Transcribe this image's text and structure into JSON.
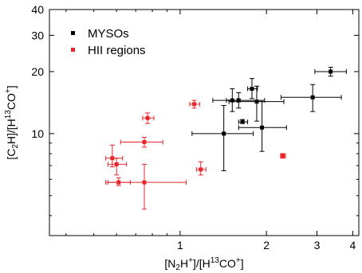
{
  "chart_data": {
    "type": "scatter",
    "title": "",
    "xlabel": {
      "p1": "[N",
      "s1": "2",
      "p2": "H",
      "sup1": "+",
      "p3": "]/[H",
      "sup2": "13",
      "p4": "CO",
      "sup3": "+",
      "p5": "]"
    },
    "ylabel": {
      "p1": "[C",
      "s1": "2",
      "p2": "H]/[H",
      "sup1": "13",
      "p3": "CO",
      "sup2": "+",
      "p4": "]"
    },
    "x_scale": "log",
    "y_scale": "log",
    "xlim": [
      0.35,
      4.2
    ],
    "ylim": [
      3.2,
      40
    ],
    "x_ticks": [
      {
        "value": 1,
        "label": "1"
      },
      {
        "value": 2,
        "label": "2"
      },
      {
        "value": 3,
        "label": "3"
      },
      {
        "value": 4,
        "label": "4"
      }
    ],
    "y_ticks": [
      {
        "value": 10,
        "label": "10"
      },
      {
        "value": 20,
        "label": "20"
      },
      {
        "value": 30,
        "label": "30"
      },
      {
        "value": 40,
        "label": "40"
      }
    ],
    "grid": false,
    "legend_position": "top-left",
    "series": [
      {
        "name": "MYSOs",
        "color": "#000000",
        "marker": "square",
        "points": [
          {
            "x": 3.35,
            "y": 20.0,
            "xlo": 2.95,
            "xhi": 3.8,
            "ylo": 19.0,
            "yhi": 21.0
          },
          {
            "x": 1.78,
            "y": 16.5,
            "xlo": 1.72,
            "xhi": 1.86,
            "ylo": 14.8,
            "yhi": 18.5
          },
          {
            "x": 1.6,
            "y": 14.5,
            "xlo": 1.3,
            "xhi": 1.97,
            "ylo": 13.3,
            "yhi": 15.8
          },
          {
            "x": 1.52,
            "y": 14.5,
            "xlo": 1.45,
            "xhi": 1.58,
            "ylo": 12.8,
            "yhi": 16.5
          },
          {
            "x": 2.9,
            "y": 15.0,
            "xlo": 2.25,
            "xhi": 3.65,
            "ylo": 12.8,
            "yhi": 17.3
          },
          {
            "x": 1.85,
            "y": 14.3,
            "xlo": 1.48,
            "xhi": 2.3,
            "ylo": 11.5,
            "yhi": 17.0
          },
          {
            "x": 1.65,
            "y": 11.4,
            "xlo": 1.6,
            "xhi": 1.72,
            "ylo": 11.2,
            "yhi": 11.7
          },
          {
            "x": 1.93,
            "y": 10.7,
            "xlo": 1.6,
            "xhi": 2.35,
            "ylo": 8.2,
            "yhi": 14.3
          },
          {
            "x": 1.42,
            "y": 10.0,
            "xlo": 1.1,
            "xhi": 1.8,
            "ylo": 6.6,
            "yhi": 13.7
          }
        ]
      },
      {
        "name": "HII regions",
        "color": "#e8262a",
        "marker": "square",
        "points": [
          {
            "x": 1.12,
            "y": 13.9,
            "xlo": 1.08,
            "xhi": 1.17,
            "ylo": 13.3,
            "yhi": 14.5
          },
          {
            "x": 0.77,
            "y": 11.9,
            "xlo": 0.74,
            "xhi": 0.81,
            "ylo": 11.2,
            "yhi": 12.6
          },
          {
            "x": 0.75,
            "y": 9.1,
            "xlo": 0.62,
            "xhi": 0.87,
            "ylo": 8.6,
            "yhi": 9.6
          },
          {
            "x": 0.58,
            "y": 7.6,
            "xlo": 0.55,
            "xhi": 0.63,
            "ylo": 6.9,
            "yhi": 8.8
          },
          {
            "x": 0.6,
            "y": 7.1,
            "xlo": 0.56,
            "xhi": 0.65,
            "ylo": 6.3,
            "yhi": 7.6
          },
          {
            "x": 2.28,
            "y": 7.8,
            "xlo": 2.24,
            "xhi": 2.33,
            "ylo": 7.6,
            "yhi": 8.0
          },
          {
            "x": 1.18,
            "y": 6.7,
            "xlo": 1.14,
            "xhi": 1.23,
            "ylo": 6.3,
            "yhi": 7.3
          },
          {
            "x": 0.61,
            "y": 5.8,
            "xlo": 0.56,
            "xhi": 0.67,
            "ylo": 5.6,
            "yhi": 6.1
          },
          {
            "x": 0.75,
            "y": 5.8,
            "xlo": 0.55,
            "xhi": 1.05,
            "ylo": 4.3,
            "yhi": 7.1
          }
        ]
      }
    ]
  }
}
